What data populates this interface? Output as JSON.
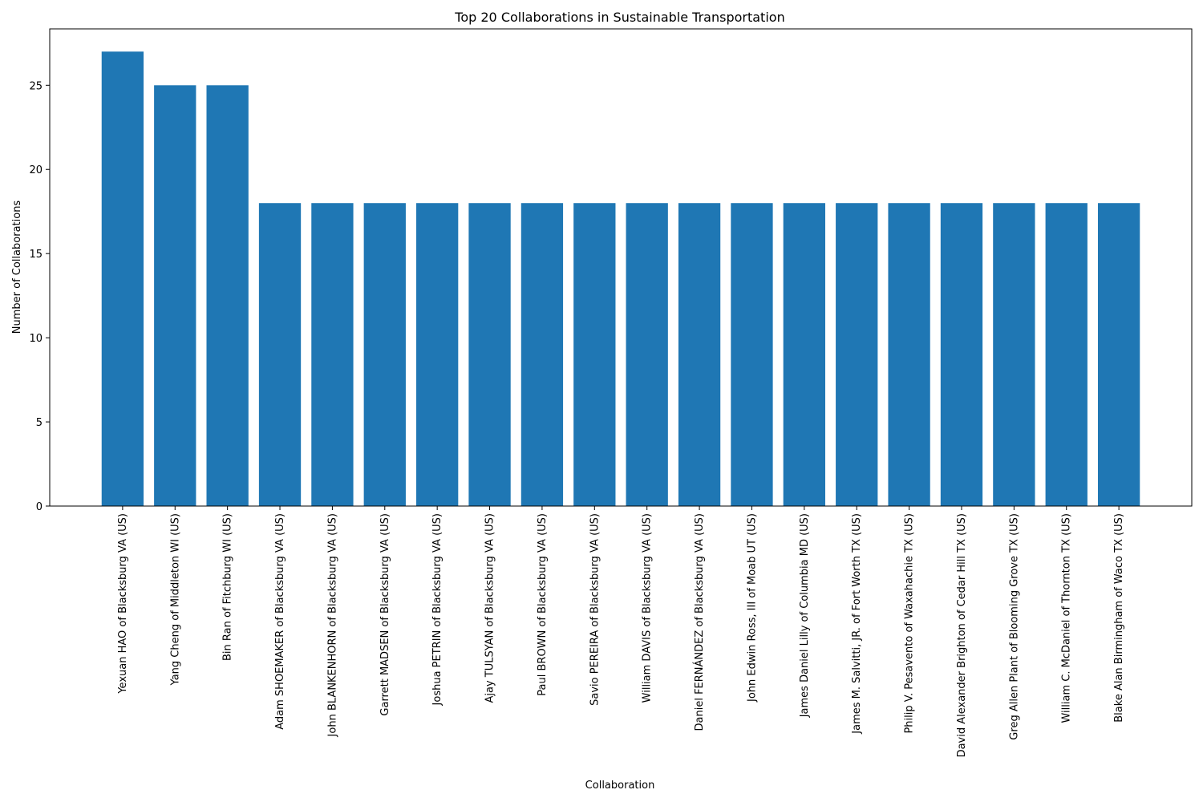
{
  "chart_data": {
    "type": "bar",
    "title": "Top 20 Collaborations in Sustainable Transportation",
    "xlabel": "Collaboration",
    "ylabel": "Number of Collaborations",
    "ylim": [
      0,
      28.35
    ],
    "yticks": [
      0,
      5,
      10,
      15,
      20,
      25
    ],
    "grid": false,
    "bar_color": "#1f77b4",
    "categories": [
      "Yexuan HAO of Blacksburg VA (US)",
      "Yang Cheng of Middleton WI (US)",
      "Bin Ran of Fitchburg WI (US)",
      "Adam SHOEMAKER of Blacksburg VA (US)",
      "John BLANKENHORN of Blacksburg VA (US)",
      "Garrett MADSEN of Blacksburg VA (US)",
      "Joshua PETRIN of Blacksburg VA (US)",
      "Ajay TULSYAN of Blacksburg VA (US)",
      "Paul BROWN of Blacksburg VA (US)",
      "Savio PEREIRA of Blacksburg VA (US)",
      "William DAVIS of Blacksburg VA (US)",
      "Daniel FERNÁNDEZ of Blacksburg VA (US)",
      "John Edwin Ross, III of Moab UT (US)",
      "James Daniel Lilly of Columbia MD (US)",
      "James M. Salvitti, JR. of Fort Worth TX (US)",
      "Philip V. Pesavento of Waxahachie TX (US)",
      "David Alexander Brighton of Cedar Hill TX (US)",
      "Greg Allen Plant of Blooming Grove TX (US)",
      "William C. McDaniel of Thornton TX (US)",
      "Blake Alan Birmingham of Waco TX (US)"
    ],
    "values": [
      27,
      25,
      25,
      18,
      18,
      18,
      18,
      18,
      18,
      18,
      18,
      18,
      18,
      18,
      18,
      18,
      18,
      18,
      18,
      18
    ]
  }
}
